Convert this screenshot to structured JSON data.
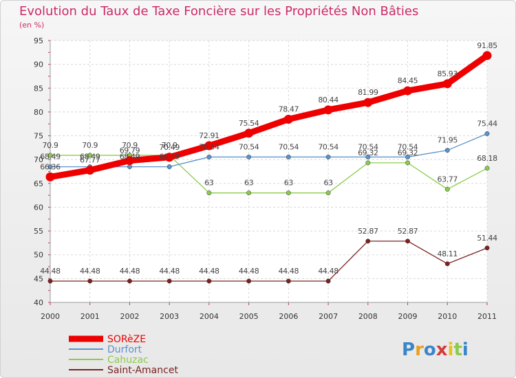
{
  "chart_data": {
    "type": "line",
    "title": "Evolution du Taux de Taxe Foncière sur les Propriétés Non Bâties",
    "subtitle": "(en %)",
    "xlabel": "",
    "ylabel": "",
    "ylim": [
      40,
      95
    ],
    "yticks": [
      40,
      45,
      50,
      55,
      60,
      65,
      70,
      75,
      80,
      85,
      90,
      95
    ],
    "categories": [
      "2000",
      "2001",
      "2002",
      "2003",
      "2004",
      "2005",
      "2006",
      "2007",
      "2008",
      "2009",
      "2010",
      "2011"
    ],
    "grid": true,
    "legend_position": "bottom-left",
    "series": [
      {
        "name": "Saint-Amancet",
        "color": "#7a2222",
        "values": [
          44.48,
          44.48,
          44.48,
          44.48,
          44.48,
          44.48,
          44.48,
          44.48,
          52.87,
          52.87,
          48.11,
          51.44
        ],
        "labels": [
          "44.48",
          "44.48",
          "44.48",
          "44.48",
          "44.48",
          "44.48",
          "44.48",
          "44.48",
          "52.87",
          "52.87",
          "48.11",
          "51.44"
        ]
      },
      {
        "name": "Cahuzac",
        "color": "#8acb4a",
        "values": [
          70.9,
          70.9,
          70.9,
          70.9,
          63,
          63,
          63,
          63,
          69.32,
          69.32,
          63.77,
          68.18
        ],
        "labels": [
          "70.9",
          "70.9",
          "70.9",
          "70.9",
          "63",
          "63",
          "63",
          "63",
          "69.32",
          "69.32",
          "63.77",
          "68.18"
        ]
      },
      {
        "name": "Durfort",
        "color": "#5b93c9",
        "values": [
          68.49,
          68.49,
          68.49,
          68.49,
          70.54,
          70.54,
          70.54,
          70.54,
          70.54,
          70.54,
          71.95,
          75.44
        ],
        "labels": [
          "68.49",
          "68.49",
          "68.49",
          "68.49",
          "70.54",
          "70.54",
          "70.54",
          "70.54",
          "70.54",
          "70.54",
          "71.95",
          "75.44"
        ]
      },
      {
        "name": "SORèZE",
        "color": "#ee0000",
        "values": [
          66.36,
          67.77,
          69.79,
          70.49,
          72.91,
          75.54,
          78.47,
          80.44,
          81.99,
          84.45,
          85.93,
          91.85
        ],
        "labels": [
          "66.36",
          "67.77",
          "69.79",
          "70.49",
          "72.91",
          "75.54",
          "78.47",
          "80.44",
          "81.99",
          "84.45",
          "85.93",
          "91.85"
        ]
      }
    ],
    "legend": [
      "SORèZE",
      "Durfort",
      "Cahuzac",
      "Saint-Amancet"
    ],
    "watermark": "Proxiti"
  }
}
